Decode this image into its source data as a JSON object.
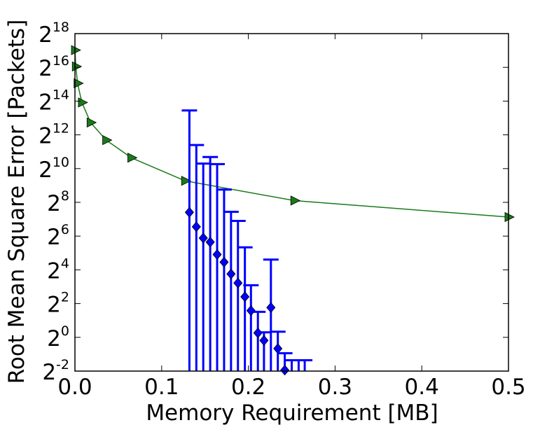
{
  "chart_data": {
    "type": "scatter",
    "xlabel": "Memory Requirement [MB]",
    "ylabel": "Root Mean Square Error [Packets]",
    "xlim": [
      0.0,
      0.5
    ],
    "ylim_log2": [
      -2,
      18
    ],
    "y_scale": "log2",
    "grid": false,
    "x_ticks": [
      "0.0",
      "0.1",
      "0.2",
      "0.3",
      "0.4",
      "0.5"
    ],
    "y_ticks": [
      {
        "base": "2",
        "exp": "18"
      },
      {
        "base": "2",
        "exp": "16"
      },
      {
        "base": "2",
        "exp": "14"
      },
      {
        "base": "2",
        "exp": "12"
      },
      {
        "base": "2",
        "exp": "10"
      },
      {
        "base": "2",
        "exp": "8"
      },
      {
        "base": "2",
        "exp": "6"
      },
      {
        "base": "2",
        "exp": "4"
      },
      {
        "base": "2",
        "exp": "2"
      },
      {
        "base": "2",
        "exp": "0"
      },
      {
        "base": "2",
        "exp": "-2"
      }
    ],
    "series": [
      {
        "marker": "triangle-right",
        "color": "#1a7a1a",
        "x": [
          0.0,
          0.001,
          0.003,
          0.008,
          0.018,
          0.036,
          0.065,
          0.127,
          0.253,
          0.5
        ],
        "y": [
          133000,
          68000,
          34000,
          15500,
          6800,
          3300,
          1600,
          620,
          275,
          140
        ]
      },
      {
        "marker": "diamond",
        "color": "#0000ff",
        "x": [
          0.132,
          0.14,
          0.148,
          0.156,
          0.164,
          0.172,
          0.18,
          0.188,
          0.196,
          0.203,
          0.211,
          0.218,
          0.226,
          0.234,
          0.242
        ],
        "y": [
          170,
          94,
          59,
          50,
          30,
          22,
          13.5,
          9.3,
          5.3,
          3.0,
          1.2,
          0.88,
          3.4,
          0.63,
          0.26
        ],
        "y_err_upper": [
          11000,
          2600,
          1200,
          1600,
          1200,
          410,
          160,
          110,
          35,
          5.5,
          1.65,
          0.35,
          21,
          0.63,
          0.26
        ]
      },
      {
        "marker": "none",
        "color": "#0000ff",
        "x": [
          0.25,
          0.258,
          0.265
        ],
        "y": [
          0.25,
          0.25,
          0.25
        ],
        "y_err_upper": [
          0.14,
          0.14,
          0.14
        ]
      }
    ]
  }
}
